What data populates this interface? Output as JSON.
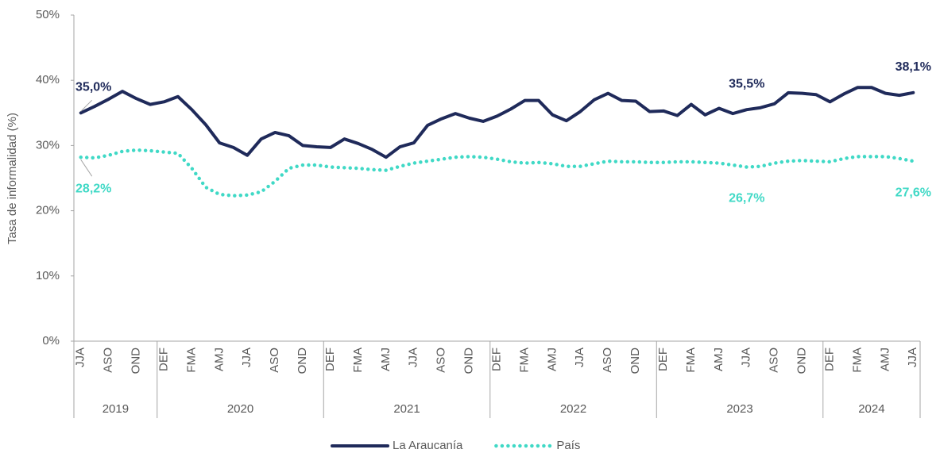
{
  "chart_data": {
    "type": "line",
    "y_label": "Tasa de informalidad (%)",
    "categories": [
      "JJA",
      null,
      "ASO",
      null,
      "OND",
      null,
      "DEF",
      null,
      "FMA",
      null,
      "AMJ",
      null,
      "JJA",
      null,
      "ASO",
      null,
      "OND",
      null,
      "DEF",
      null,
      "FMA",
      null,
      "AMJ",
      null,
      "JJA",
      null,
      "ASO",
      null,
      "OND",
      null,
      "DEF",
      null,
      "FMA",
      null,
      "AMJ",
      null,
      "JJA",
      null,
      "ASO",
      null,
      "OND",
      null,
      "DEF",
      null,
      "FMA",
      null,
      "AMJ",
      null,
      "JJA",
      null,
      "ASO",
      null,
      "OND",
      null,
      "DEF",
      null,
      "FMA",
      null,
      "AMJ",
      null,
      "JJA"
    ],
    "category_groups": [
      {
        "name": "2019",
        "count": 6
      },
      {
        "name": "2020",
        "count": 12
      },
      {
        "name": "2021",
        "count": 12
      },
      {
        "name": "2022",
        "count": 12
      },
      {
        "name": "2023",
        "count": 12
      },
      {
        "name": "2024",
        "count": 7
      }
    ],
    "series": [
      {
        "name": "La Araucanía",
        "color": "#1f2a5a",
        "style": "solid",
        "values": [
          35.0,
          36.0,
          37.1,
          38.3,
          37.2,
          36.3,
          36.7,
          37.5,
          35.5,
          33.2,
          30.4,
          29.7,
          28.5,
          31.0,
          32.0,
          31.5,
          30.0,
          29.8,
          29.7,
          31.0,
          30.3,
          29.4,
          28.2,
          29.8,
          30.4,
          33.1,
          34.1,
          34.9,
          34.2,
          33.7,
          34.5,
          35.6,
          36.9,
          36.9,
          34.7,
          33.8,
          35.2,
          37.0,
          38.0,
          36.9,
          36.8,
          35.2,
          35.3,
          34.6,
          36.3,
          34.7,
          35.7,
          34.9,
          35.5,
          35.8,
          36.4,
          38.1,
          38.0,
          37.8,
          36.7,
          37.9,
          38.9,
          38.9,
          38.0,
          37.7,
          38.1
        ],
        "value_labels": [
          "35,0%",
          null,
          null,
          null,
          null,
          null,
          null,
          null,
          null,
          null,
          null,
          null,
          null,
          null,
          null,
          null,
          null,
          null,
          null,
          null,
          null,
          null,
          null,
          null,
          null,
          null,
          null,
          null,
          null,
          null,
          null,
          null,
          null,
          null,
          null,
          null,
          null,
          null,
          null,
          null,
          null,
          null,
          null,
          null,
          null,
          null,
          null,
          null,
          "35,5%",
          null,
          null,
          null,
          null,
          null,
          null,
          null,
          null,
          null,
          null,
          null,
          "38,1%"
        ]
      },
      {
        "name": "País",
        "color": "#40d9c6",
        "style": "dotted",
        "values": [
          28.2,
          28.1,
          28.5,
          29.1,
          29.3,
          29.2,
          29.0,
          28.8,
          26.5,
          23.6,
          22.5,
          22.3,
          22.4,
          22.9,
          24.5,
          26.5,
          27.0,
          27.0,
          26.7,
          26.6,
          26.5,
          26.3,
          26.2,
          26.8,
          27.3,
          27.6,
          27.9,
          28.2,
          28.3,
          28.2,
          27.9,
          27.5,
          27.3,
          27.4,
          27.2,
          26.8,
          26.8,
          27.2,
          27.6,
          27.5,
          27.5,
          27.4,
          27.4,
          27.5,
          27.5,
          27.4,
          27.3,
          27.0,
          26.7,
          26.8,
          27.3,
          27.6,
          27.7,
          27.6,
          27.5,
          28.0,
          28.3,
          28.3,
          28.3,
          28.0,
          27.6
        ],
        "value_labels": [
          "28,2%",
          null,
          null,
          null,
          null,
          null,
          null,
          null,
          null,
          null,
          null,
          null,
          null,
          null,
          null,
          null,
          null,
          null,
          null,
          null,
          null,
          null,
          null,
          null,
          null,
          null,
          null,
          null,
          null,
          null,
          null,
          null,
          null,
          null,
          null,
          null,
          null,
          null,
          null,
          null,
          null,
          null,
          null,
          null,
          null,
          null,
          null,
          null,
          "26,7%",
          null,
          null,
          null,
          null,
          null,
          null,
          null,
          null,
          null,
          null,
          null,
          "27,6%"
        ]
      }
    ],
    "ylim": [
      0,
      50
    ],
    "yticks": [
      {
        "value": 0,
        "label": "0%"
      },
      {
        "value": 10,
        "label": "10%"
      },
      {
        "value": 20,
        "label": "20%"
      },
      {
        "value": 30,
        "label": "30%"
      },
      {
        "value": 40,
        "label": "40%"
      },
      {
        "value": 50,
        "label": "50%"
      }
    ],
    "grid": false,
    "legend": "bottom"
  }
}
